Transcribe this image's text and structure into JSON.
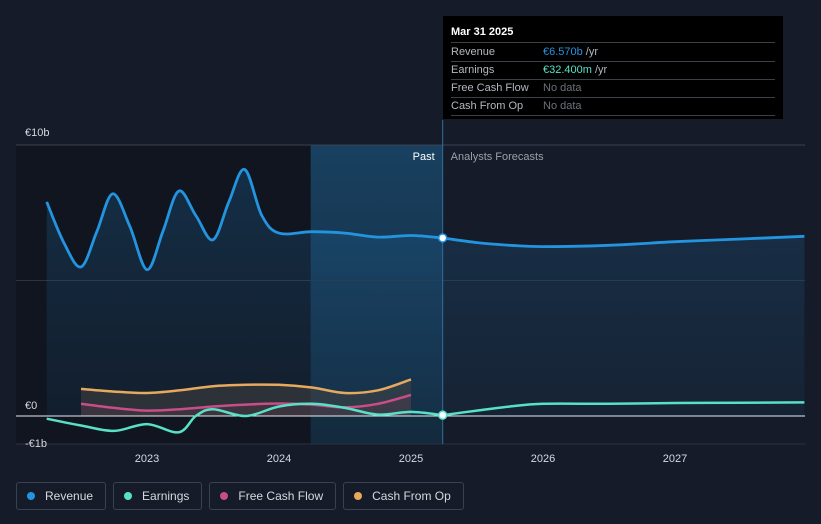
{
  "chart_data": {
    "type": "line",
    "title": "",
    "x_range": [
      2022.22,
      2027.98
    ],
    "ylim": [
      -1.05,
      10.0
    ],
    "y_tick_labels": [
      {
        "value": 10,
        "label": "€10b"
      },
      {
        "value": 0,
        "label": "€0"
      },
      {
        "value": -1,
        "label": "-€1b"
      }
    ],
    "x_tick_labels": [
      {
        "value": 2023,
        "label": "2023"
      },
      {
        "value": 2024,
        "label": "2024"
      },
      {
        "value": 2025,
        "label": "2025"
      },
      {
        "value": 2026,
        "label": "2026"
      },
      {
        "value": 2027,
        "label": "2027"
      }
    ],
    "past_label": "Past",
    "forecast_label": "Analysts Forecasts",
    "divider_x": 2025.24,
    "highlight_start_x": 2024.24,
    "series": [
      {
        "name": "Revenue",
        "color": "#2394df",
        "past": [
          [
            2022.24,
            7.9
          ],
          [
            2022.37,
            6.4
          ],
          [
            2022.5,
            5.5
          ],
          [
            2022.62,
            6.8
          ],
          [
            2022.74,
            8.2
          ],
          [
            2022.87,
            7.0
          ],
          [
            2023.0,
            5.4
          ],
          [
            2023.12,
            6.8
          ],
          [
            2023.24,
            8.3
          ],
          [
            2023.37,
            7.4
          ],
          [
            2023.5,
            6.5
          ],
          [
            2023.62,
            7.9
          ],
          [
            2023.74,
            9.1
          ],
          [
            2023.87,
            7.4
          ],
          [
            2024.0,
            6.75
          ],
          [
            2024.25,
            6.8
          ],
          [
            2024.5,
            6.75
          ],
          [
            2024.75,
            6.6
          ],
          [
            2025.0,
            6.66
          ],
          [
            2025.24,
            6.57
          ]
        ],
        "forecast": [
          [
            2025.24,
            6.57
          ],
          [
            2025.5,
            6.4
          ],
          [
            2025.75,
            6.3
          ],
          [
            2026.0,
            6.25
          ],
          [
            2026.5,
            6.3
          ],
          [
            2027.0,
            6.43
          ],
          [
            2027.5,
            6.53
          ],
          [
            2027.98,
            6.63
          ]
        ]
      },
      {
        "name": "Earnings",
        "color": "#58e1c6",
        "past": [
          [
            2022.24,
            -0.1
          ],
          [
            2022.5,
            -0.35
          ],
          [
            2022.75,
            -0.55
          ],
          [
            2023.0,
            -0.3
          ],
          [
            2023.24,
            -0.6
          ],
          [
            2023.37,
            0.0
          ],
          [
            2023.5,
            0.25
          ],
          [
            2023.75,
            0.0
          ],
          [
            2024.0,
            0.35
          ],
          [
            2024.25,
            0.45
          ],
          [
            2024.5,
            0.3
          ],
          [
            2024.75,
            0.05
          ],
          [
            2025.0,
            0.15
          ],
          [
            2025.24,
            0.03
          ]
        ],
        "forecast": [
          [
            2025.24,
            0.03
          ],
          [
            2025.5,
            0.2
          ],
          [
            2025.75,
            0.35
          ],
          [
            2026.0,
            0.45
          ],
          [
            2026.5,
            0.45
          ],
          [
            2027.0,
            0.48
          ],
          [
            2027.5,
            0.49
          ],
          [
            2027.98,
            0.5
          ]
        ]
      },
      {
        "name": "Free Cash Flow",
        "color": "#c84d88",
        "past": [
          [
            2022.5,
            0.45
          ],
          [
            2022.75,
            0.3
          ],
          [
            2023.0,
            0.2
          ],
          [
            2023.25,
            0.25
          ],
          [
            2023.5,
            0.35
          ],
          [
            2023.75,
            0.42
          ],
          [
            2024.0,
            0.46
          ],
          [
            2024.25,
            0.42
          ],
          [
            2024.5,
            0.32
          ],
          [
            2024.75,
            0.45
          ],
          [
            2025.0,
            0.78
          ]
        ],
        "forecast": []
      },
      {
        "name": "Cash From Op",
        "color": "#e6a95d",
        "past": [
          [
            2022.5,
            1.0
          ],
          [
            2022.75,
            0.9
          ],
          [
            2023.0,
            0.85
          ],
          [
            2023.25,
            0.95
          ],
          [
            2023.5,
            1.1
          ],
          [
            2023.75,
            1.15
          ],
          [
            2024.0,
            1.15
          ],
          [
            2024.25,
            1.05
          ],
          [
            2024.5,
            0.85
          ],
          [
            2024.75,
            0.95
          ],
          [
            2025.0,
            1.35
          ]
        ],
        "forecast": []
      }
    ]
  },
  "tooltip": {
    "date": "Mar 31 2025",
    "rows": [
      {
        "label": "Revenue",
        "value": "€6.570b",
        "unit": "/yr",
        "color": "#2394df"
      },
      {
        "label": "Earnings",
        "value": "€32.400m",
        "unit": "/yr",
        "color": "#58e1c6"
      },
      {
        "label": "Free Cash Flow",
        "value": "No data",
        "unit": "",
        "color": "#6c717a"
      },
      {
        "label": "Cash From Op",
        "value": "No data",
        "unit": "",
        "color": "#6c717a"
      }
    ]
  },
  "legend": [
    {
      "label": "Revenue",
      "color": "#2394df"
    },
    {
      "label": "Earnings",
      "color": "#58e1c6"
    },
    {
      "label": "Free Cash Flow",
      "color": "#c84d88"
    },
    {
      "label": "Cash From Op",
      "color": "#e6a95d"
    }
  ]
}
